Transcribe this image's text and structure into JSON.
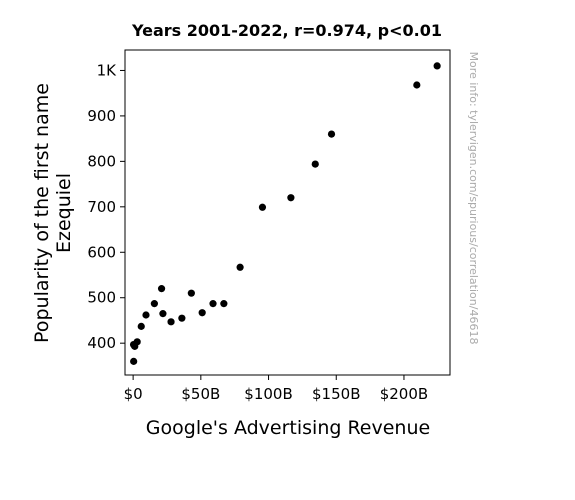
{
  "chart_data": {
    "type": "scatter",
    "title": "Years 2001-2022, r=0.974, p<0.01",
    "xlabel": "Google's Advertising Revenue",
    "ylabel_lines": [
      "Popularity of the first name",
      "Ezequiel"
    ],
    "xlim": [
      -6,
      234
    ],
    "ylim": [
      330,
      1045
    ],
    "x_ticks": [
      {
        "value": 0,
        "label": "$0"
      },
      {
        "value": 50,
        "label": "$50B"
      },
      {
        "value": 100,
        "label": "$100B"
      },
      {
        "value": 150,
        "label": "$150B"
      },
      {
        "value": 200,
        "label": "$200B"
      }
    ],
    "y_ticks": [
      {
        "value": 400,
        "label": "400"
      },
      {
        "value": 500,
        "label": "500"
      },
      {
        "value": 600,
        "label": "600"
      },
      {
        "value": 700,
        "label": "700"
      },
      {
        "value": 800,
        "label": "800"
      },
      {
        "value": 900,
        "label": "900"
      },
      {
        "value": 1000,
        "label": "1K"
      }
    ],
    "grid": false,
    "marker_color": "#000000",
    "points": [
      {
        "x": 0.4,
        "y": 360
      },
      {
        "x": 0.3,
        "y": 397
      },
      {
        "x": 1.2,
        "y": 393
      },
      {
        "x": 3.0,
        "y": 403
      },
      {
        "x": 6.0,
        "y": 437
      },
      {
        "x": 9.5,
        "y": 462
      },
      {
        "x": 15.7,
        "y": 487
      },
      {
        "x": 21.0,
        "y": 520
      },
      {
        "x": 22.0,
        "y": 465
      },
      {
        "x": 28.0,
        "y": 447
      },
      {
        "x": 36.0,
        "y": 455
      },
      {
        "x": 43.0,
        "y": 510
      },
      {
        "x": 51.0,
        "y": 467
      },
      {
        "x": 59.0,
        "y": 487
      },
      {
        "x": 67.0,
        "y": 487
      },
      {
        "x": 79.0,
        "y": 567
      },
      {
        "x": 95.5,
        "y": 699
      },
      {
        "x": 116.5,
        "y": 720
      },
      {
        "x": 134.5,
        "y": 794
      },
      {
        "x": 146.5,
        "y": 860
      },
      {
        "x": 209.5,
        "y": 968
      },
      {
        "x": 224.5,
        "y": 1010
      }
    ]
  },
  "side_note": "More info: tylervigen.com/spurious/correlation/46618"
}
